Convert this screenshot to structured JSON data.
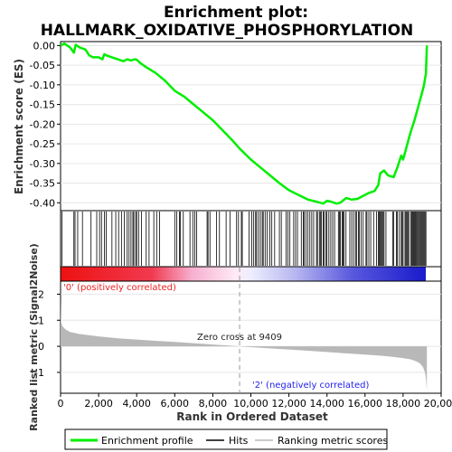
{
  "chart_data": {
    "type": "line",
    "title_line1": "Enrichment plot:",
    "title_line2": "HALLMARK_OXIDATIVE_PHOSPHORYLATION",
    "es_panel": {
      "ylabel": "Enrichment score (ES)",
      "ylim": [
        -0.42,
        0.01
      ],
      "yticks": [
        "0.00",
        "-0.05",
        "-0.10",
        "-0.15",
        "-0.20",
        "-0.25",
        "-0.30",
        "-0.35",
        "-0.40"
      ],
      "ytick_values": [
        0.0,
        -0.05,
        -0.1,
        -0.15,
        -0.2,
        -0.25,
        -0.3,
        -0.35,
        -0.4
      ],
      "line_color": "#00ee00",
      "series": {
        "name": "Enrichment profile",
        "x": [
          0,
          200,
          500,
          700,
          800,
          1000,
          1300,
          1500,
          1700,
          2000,
          2200,
          2300,
          2400,
          2700,
          3000,
          3300,
          3500,
          3700,
          3900,
          4000,
          4200,
          4500,
          5000,
          5500,
          6000,
          6500,
          7000,
          7500,
          8000,
          8500,
          9000,
          9409,
          10000,
          10500,
          11000,
          11500,
          12000,
          12500,
          13000,
          13500,
          13800,
          14000,
          14200,
          14500,
          14700,
          15000,
          15300,
          15600,
          16000,
          16200,
          16500,
          16700,
          16800,
          17000,
          17200,
          17500,
          17700,
          17900,
          18000,
          18200,
          18400,
          18600,
          18800,
          19000,
          19100,
          19200,
          19250
        ],
        "y": [
          0.0,
          0.005,
          -0.005,
          -0.018,
          0.002,
          -0.005,
          -0.01,
          -0.025,
          -0.03,
          -0.03,
          -0.035,
          -0.022,
          -0.025,
          -0.03,
          -0.035,
          -0.04,
          -0.035,
          -0.038,
          -0.035,
          -0.036,
          -0.045,
          -0.055,
          -0.07,
          -0.09,
          -0.115,
          -0.13,
          -0.15,
          -0.17,
          -0.19,
          -0.215,
          -0.24,
          -0.262,
          -0.29,
          -0.31,
          -0.33,
          -0.35,
          -0.368,
          -0.38,
          -0.392,
          -0.398,
          -0.402,
          -0.395,
          -0.397,
          -0.402,
          -0.4,
          -0.388,
          -0.392,
          -0.39,
          -0.38,
          -0.375,
          -0.37,
          -0.355,
          -0.325,
          -0.318,
          -0.33,
          -0.335,
          -0.31,
          -0.28,
          -0.29,
          -0.255,
          -0.22,
          -0.19,
          -0.155,
          -0.12,
          -0.1,
          -0.07,
          0.0
        ]
      }
    },
    "hits": {
      "name": "Hits",
      "positions": [
        80,
        700,
        760,
        900,
        1150,
        1600,
        1900,
        2050,
        2150,
        2300,
        2400,
        2700,
        2900,
        3050,
        3200,
        3350,
        3500,
        3600,
        3700,
        3800,
        3850,
        3950,
        4000,
        4100,
        4250,
        4500,
        4650,
        4900,
        5050,
        5200,
        6000,
        6100,
        6250,
        6300,
        6450,
        6800,
        6950,
        7050,
        7150,
        7700,
        7750,
        7850,
        8200,
        8350,
        8700,
        8900,
        9250,
        9350,
        9500,
        9550,
        9900,
        10050,
        10150,
        10250,
        10300,
        10400,
        10500,
        10600,
        10650,
        10750,
        10850,
        11000,
        11100,
        11250,
        11500,
        11600,
        11850,
        11950,
        12050,
        12250,
        12350,
        12450,
        12650,
        12750,
        12800,
        12900,
        13000,
        13100,
        13200,
        13300,
        13450,
        13500,
        13600,
        13650,
        13700,
        13800,
        13850,
        13950,
        14000,
        14100,
        14200,
        14300,
        14400,
        14600,
        14650,
        14700,
        14800,
        14850,
        14900,
        15000,
        15200,
        15300,
        15400,
        15500,
        15550,
        15650,
        15700,
        15800,
        15900,
        16050,
        16100,
        16200,
        16300,
        16450,
        16600,
        16700,
        16750,
        16800,
        16850,
        16900,
        16950,
        17000,
        17100,
        17450,
        17500,
        17650,
        17700,
        17800,
        17900,
        17950,
        18000,
        18100,
        18150,
        18200,
        18250,
        18300,
        18400,
        18450,
        18500,
        18550,
        18600,
        18650,
        18700,
        18750,
        18800,
        18850,
        18900,
        18950,
        19000,
        19050,
        19100,
        19150,
        19200
      ]
    },
    "rank_panel": {
      "ylabel": "Ranked list metric (Signal2Noise)",
      "ylim": [
        -1.8,
        2.5
      ],
      "yticks": [
        "2",
        "1",
        "0",
        "-1"
      ],
      "ytick_values": [
        2,
        1,
        0,
        -1
      ],
      "name": "Ranking metric scores",
      "x": [
        0,
        20,
        60,
        120,
        250,
        500,
        1000,
        2000,
        3000,
        4000,
        5000,
        6000,
        7000,
        8000,
        9409,
        10000,
        11000,
        12000,
        13000,
        14000,
        15000,
        16000,
        17000,
        17500,
        18000,
        18400,
        18700,
        18900,
        19050,
        19150,
        19200,
        19240,
        19250
      ],
      "values": [
        1.95,
        1.0,
        0.85,
        0.75,
        0.65,
        0.55,
        0.47,
        0.38,
        0.31,
        0.26,
        0.21,
        0.17,
        0.12,
        0.07,
        0.0,
        -0.03,
        -0.08,
        -0.12,
        -0.17,
        -0.22,
        -0.27,
        -0.32,
        -0.37,
        -0.41,
        -0.45,
        -0.5,
        -0.58,
        -0.66,
        -0.8,
        -1.0,
        -1.25,
        -1.6,
        -1.7
      ],
      "fill_color": "#b8b8b8",
      "zero_cross_label": "Zero cross at 9409",
      "zero_cross": 9409,
      "pos_label": "'0' (positively correlated)",
      "neg_label": "'2' (negatively correlated)",
      "pos_color": "#ee2222",
      "neg_color": "#2222ee"
    },
    "xaxis": {
      "xlabel": "Rank in Ordered Dataset",
      "xlim": [
        0,
        20000
      ],
      "xticks": [
        "0",
        "2,000",
        "4,000",
        "6,000",
        "8,000",
        "10,000",
        "12,000",
        "14,000",
        "16,000",
        "18,000",
        "20,000"
      ],
      "xtick_values": [
        0,
        2000,
        4000,
        6000,
        8000,
        10000,
        12000,
        14000,
        16000,
        18000,
        20000
      ],
      "n_genes": 19250
    },
    "legend": {
      "placement": "bottom",
      "entries": [
        "Enrichment profile",
        "Hits",
        "Ranking metric scores"
      ]
    }
  }
}
